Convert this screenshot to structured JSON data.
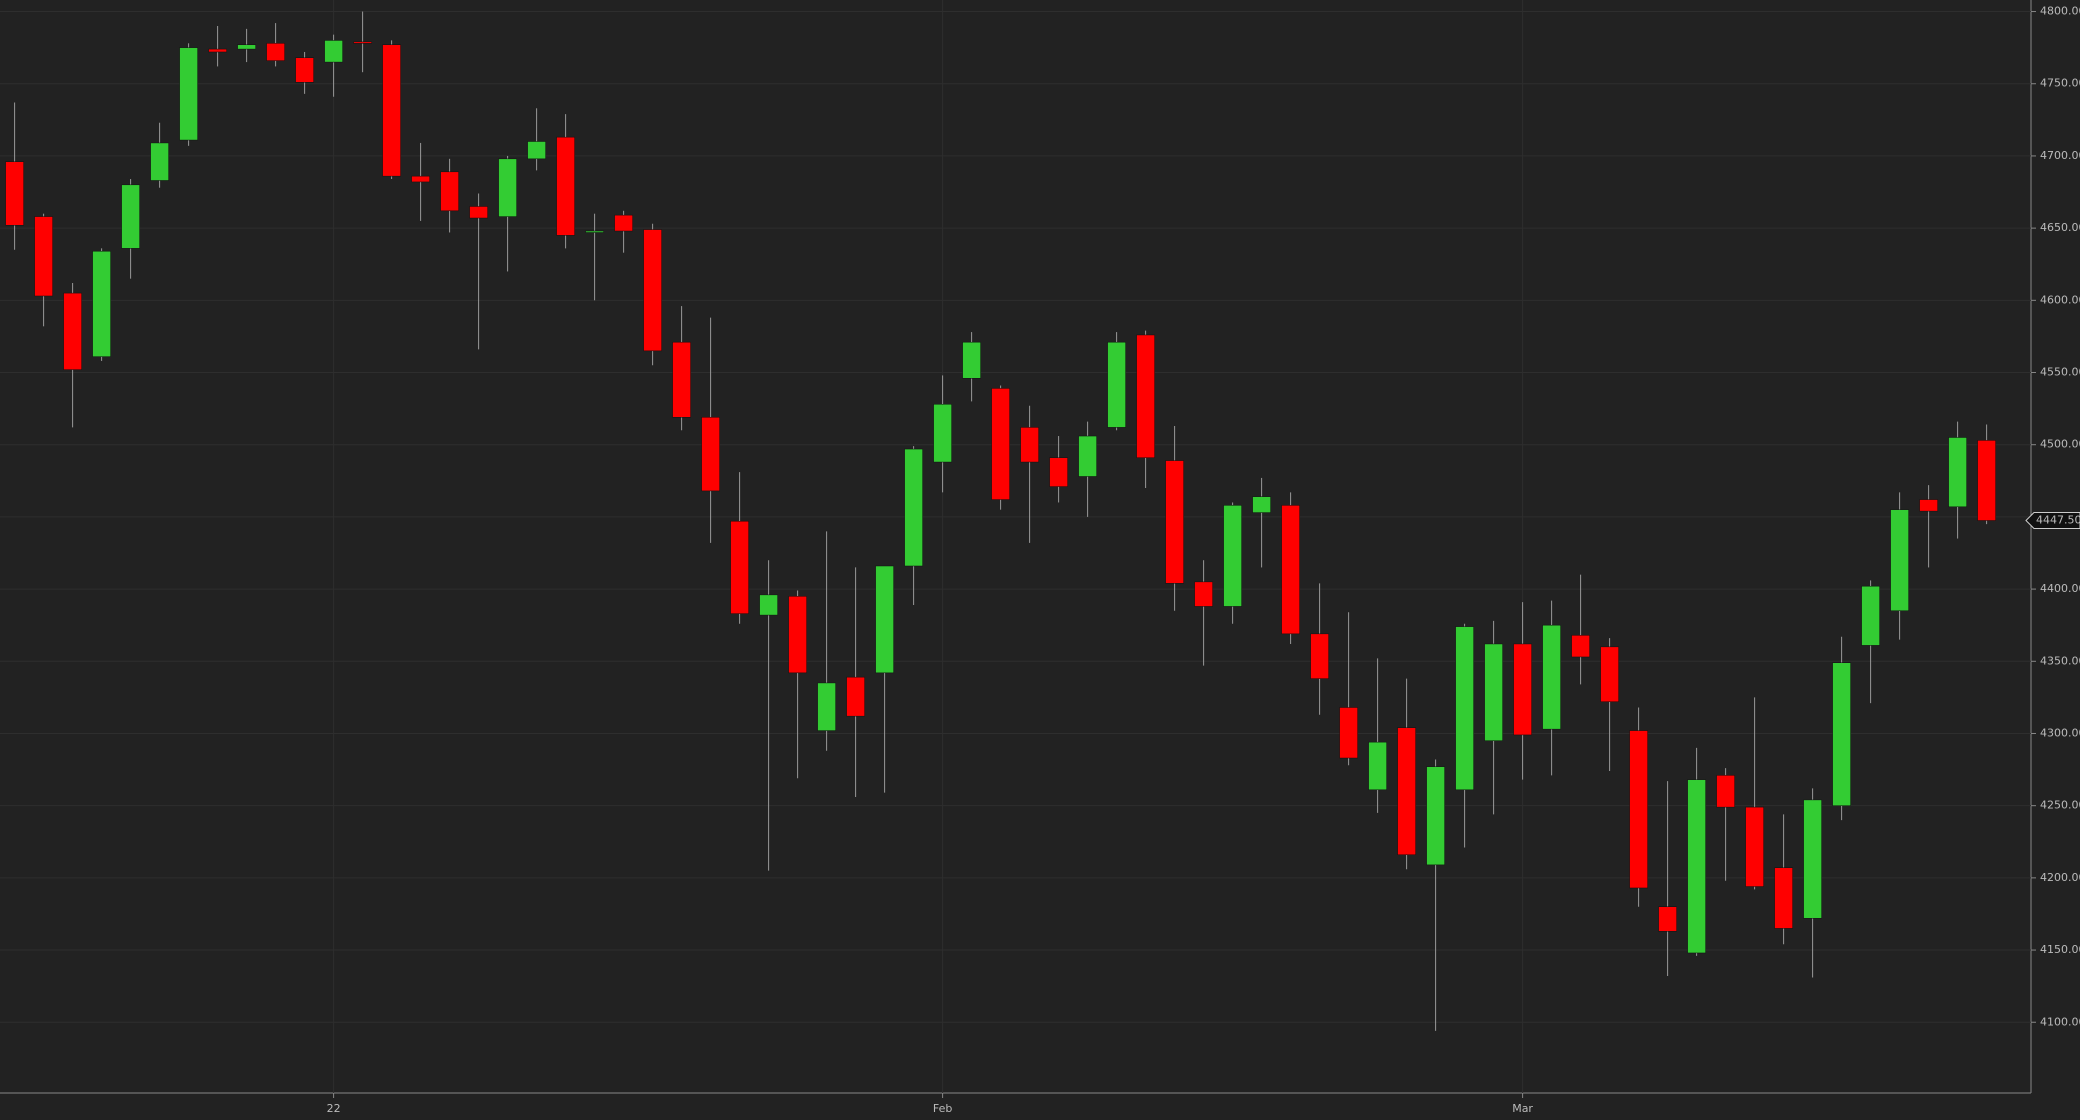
{
  "chart_data": {
    "type": "candlestick",
    "categories": [
      null,
      null,
      null,
      null,
      null,
      null,
      null,
      null,
      null,
      null,
      null,
      "22",
      null,
      null,
      null,
      null,
      null,
      null,
      null,
      null,
      null,
      null,
      null,
      null,
      null,
      null,
      null,
      null,
      null,
      null,
      null,
      null,
      "Feb",
      null,
      null,
      null,
      null,
      null,
      null,
      null,
      null,
      null,
      null,
      null,
      null,
      null,
      null,
      null,
      null,
      null,
      null,
      null,
      "Mar",
      null,
      null,
      null,
      null,
      null,
      null,
      null,
      null,
      null,
      null,
      null,
      null,
      null,
      null,
      null,
      null
    ],
    "open": [
      4696,
      4658,
      4605,
      4561,
      4636,
      4683,
      4711,
      4774,
      4774,
      4778,
      4768,
      4765,
      4779,
      4777,
      4686,
      4689,
      4665,
      4658,
      4698,
      4713,
      4648,
      4659,
      4649,
      4571,
      4519,
      4447,
      4382,
      4395,
      4302,
      4339,
      4342,
      4416,
      4488,
      4546,
      4539,
      4512,
      4491,
      4478,
      4512,
      4576,
      4489,
      4405,
      4388,
      4453,
      4458,
      4369,
      4318,
      4261,
      4304,
      4209,
      4261,
      4295,
      4362,
      4303,
      4368,
      4360,
      4302,
      4180,
      4148,
      4271,
      4249,
      4207,
      4172,
      4250,
      4361,
      4385,
      4462,
      4457,
      4503
    ],
    "high": [
      4737,
      4660,
      4612,
      4636,
      4684,
      4723,
      4778,
      4790,
      4788,
      4792,
      4772,
      4784,
      4800,
      4780,
      4709,
      4698,
      4674,
      4700,
      4733,
      4729,
      4660,
      4662,
      4653,
      4596,
      4588,
      4481,
      4420,
      4399,
      4440,
      4415,
      4416,
      4499,
      4548,
      4578,
      4541,
      4527,
      4506,
      4516,
      4578,
      4579,
      4513,
      4420,
      4460,
      4477,
      4467,
      4404,
      4384,
      4352,
      4338,
      4282,
      4376,
      4378,
      4391,
      4392,
      4410,
      4366,
      4318,
      4267,
      4290,
      4276,
      4325,
      4244,
      4262,
      4367,
      4406,
      4467,
      4472,
      4516,
      4514
    ],
    "low": [
      4635,
      4582,
      4512,
      4558,
      4615,
      4678,
      4707,
      4762,
      4765,
      4762,
      4743,
      4741,
      4758,
      4684,
      4655,
      4647,
      4566,
      4620,
      4690,
      4636,
      4600,
      4633,
      4555,
      4510,
      4432,
      4376,
      4205,
      4269,
      4288,
      4256,
      4259,
      4389,
      4467,
      4530,
      4455,
      4432,
      4460,
      4450,
      4510,
      4470,
      4385,
      4347,
      4376,
      4415,
      4362,
      4313,
      4278,
      4245,
      4206,
      4094,
      4221,
      4244,
      4268,
      4271,
      4334,
      4274,
      4180,
      4132,
      4146,
      4198,
      4192,
      4154,
      4131,
      4240,
      4321,
      4365,
      4415,
      4435,
      4445
    ],
    "close": [
      4652,
      4603,
      4552,
      4634,
      4680,
      4709,
      4775,
      4772,
      4777,
      4766,
      4751,
      4780,
      4778,
      4686,
      4682,
      4662,
      4657,
      4698,
      4710,
      4645,
      4648,
      4648,
      4565,
      4519,
      4468,
      4383,
      4396,
      4342,
      4335,
      4312,
      4416,
      4497,
      4528,
      4571,
      4462,
      4488,
      4471,
      4506,
      4571,
      4491,
      4404,
      4388,
      4458,
      4464,
      4369,
      4338,
      4283,
      4294,
      4216,
      4277,
      4374,
      4362,
      4299,
      4375,
      4353,
      4322,
      4193,
      4163,
      4268,
      4249,
      4194,
      4165,
      4254,
      4349,
      4402,
      4455,
      4454,
      4505,
      4447.5
    ],
    "up_color": "#33cc33",
    "down_color": "#ff0000",
    "ylim": [
      4051,
      4808
    ],
    "yticks": [
      {
        "value": 4100,
        "label": "4100.00"
      },
      {
        "value": 4150,
        "label": "4150.00"
      },
      {
        "value": 4200,
        "label": "4200.00"
      },
      {
        "value": 4250,
        "label": "4250.00"
      },
      {
        "value": 4300,
        "label": "4300.00"
      },
      {
        "value": 4350,
        "label": "4350.00"
      },
      {
        "value": 4400,
        "label": "4400.00"
      },
      {
        "value": 4450,
        "label": "4450.00"
      },
      {
        "value": 4500,
        "label": "4500.00"
      },
      {
        "value": 4550,
        "label": "4550.00"
      },
      {
        "value": 4600,
        "label": "4600.00"
      },
      {
        "value": 4650,
        "label": "4650.00"
      },
      {
        "value": 4700,
        "label": "4700.00"
      },
      {
        "value": 4750,
        "label": "4750.00"
      },
      {
        "value": 4800,
        "label": "4800.00"
      }
    ],
    "last_price": {
      "value": 4447.5,
      "label": "4447.50"
    },
    "grid": true
  }
}
